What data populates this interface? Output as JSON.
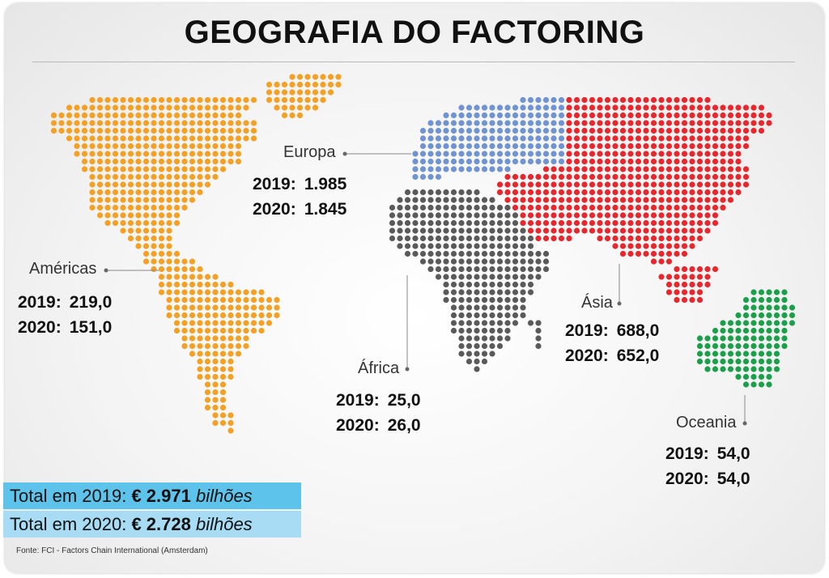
{
  "title": "GEOGRAFIA DO FACTORING",
  "colors": {
    "americas": "#f5a023",
    "europe": "#6f93d3",
    "asia": "#e8262b",
    "africa": "#5a5a5a",
    "oceania": "#1ba04a",
    "total_2019_bg": "#5ec3ea",
    "total_2020_bg": "#a8dcf4"
  },
  "regions": {
    "americas": {
      "name": "Américas",
      "year1": "2019:",
      "val1": "219,0",
      "year2": "2020:",
      "val2": "151,0"
    },
    "europe": {
      "name": "Europa",
      "year1": "2019:",
      "val1": "1.985",
      "year2": "2020:",
      "val2": "1.845"
    },
    "africa": {
      "name": "África",
      "year1": "2019:",
      "val1": "25,0",
      "year2": "2020:",
      "val2": "26,0"
    },
    "asia": {
      "name": "Ásia",
      "year1": "2019:",
      "val1": "688,0",
      "year2": "2020:",
      "val2": "652,0"
    },
    "oceania": {
      "name": "Oceania",
      "year1": "2019:",
      "val1": "54,0",
      "year2": "2020:",
      "val2": "54,0"
    }
  },
  "totals": {
    "t2019": {
      "label": "Total em 2019: ",
      "amount": "€ 2.971",
      "unit": "bilhões"
    },
    "t2020": {
      "label": "Total em 2020: ",
      "amount": "€ 2.728",
      "unit": "bilhões"
    }
  },
  "source": "Fonte: FCI - Factors Chain International (Amsterdam)"
}
